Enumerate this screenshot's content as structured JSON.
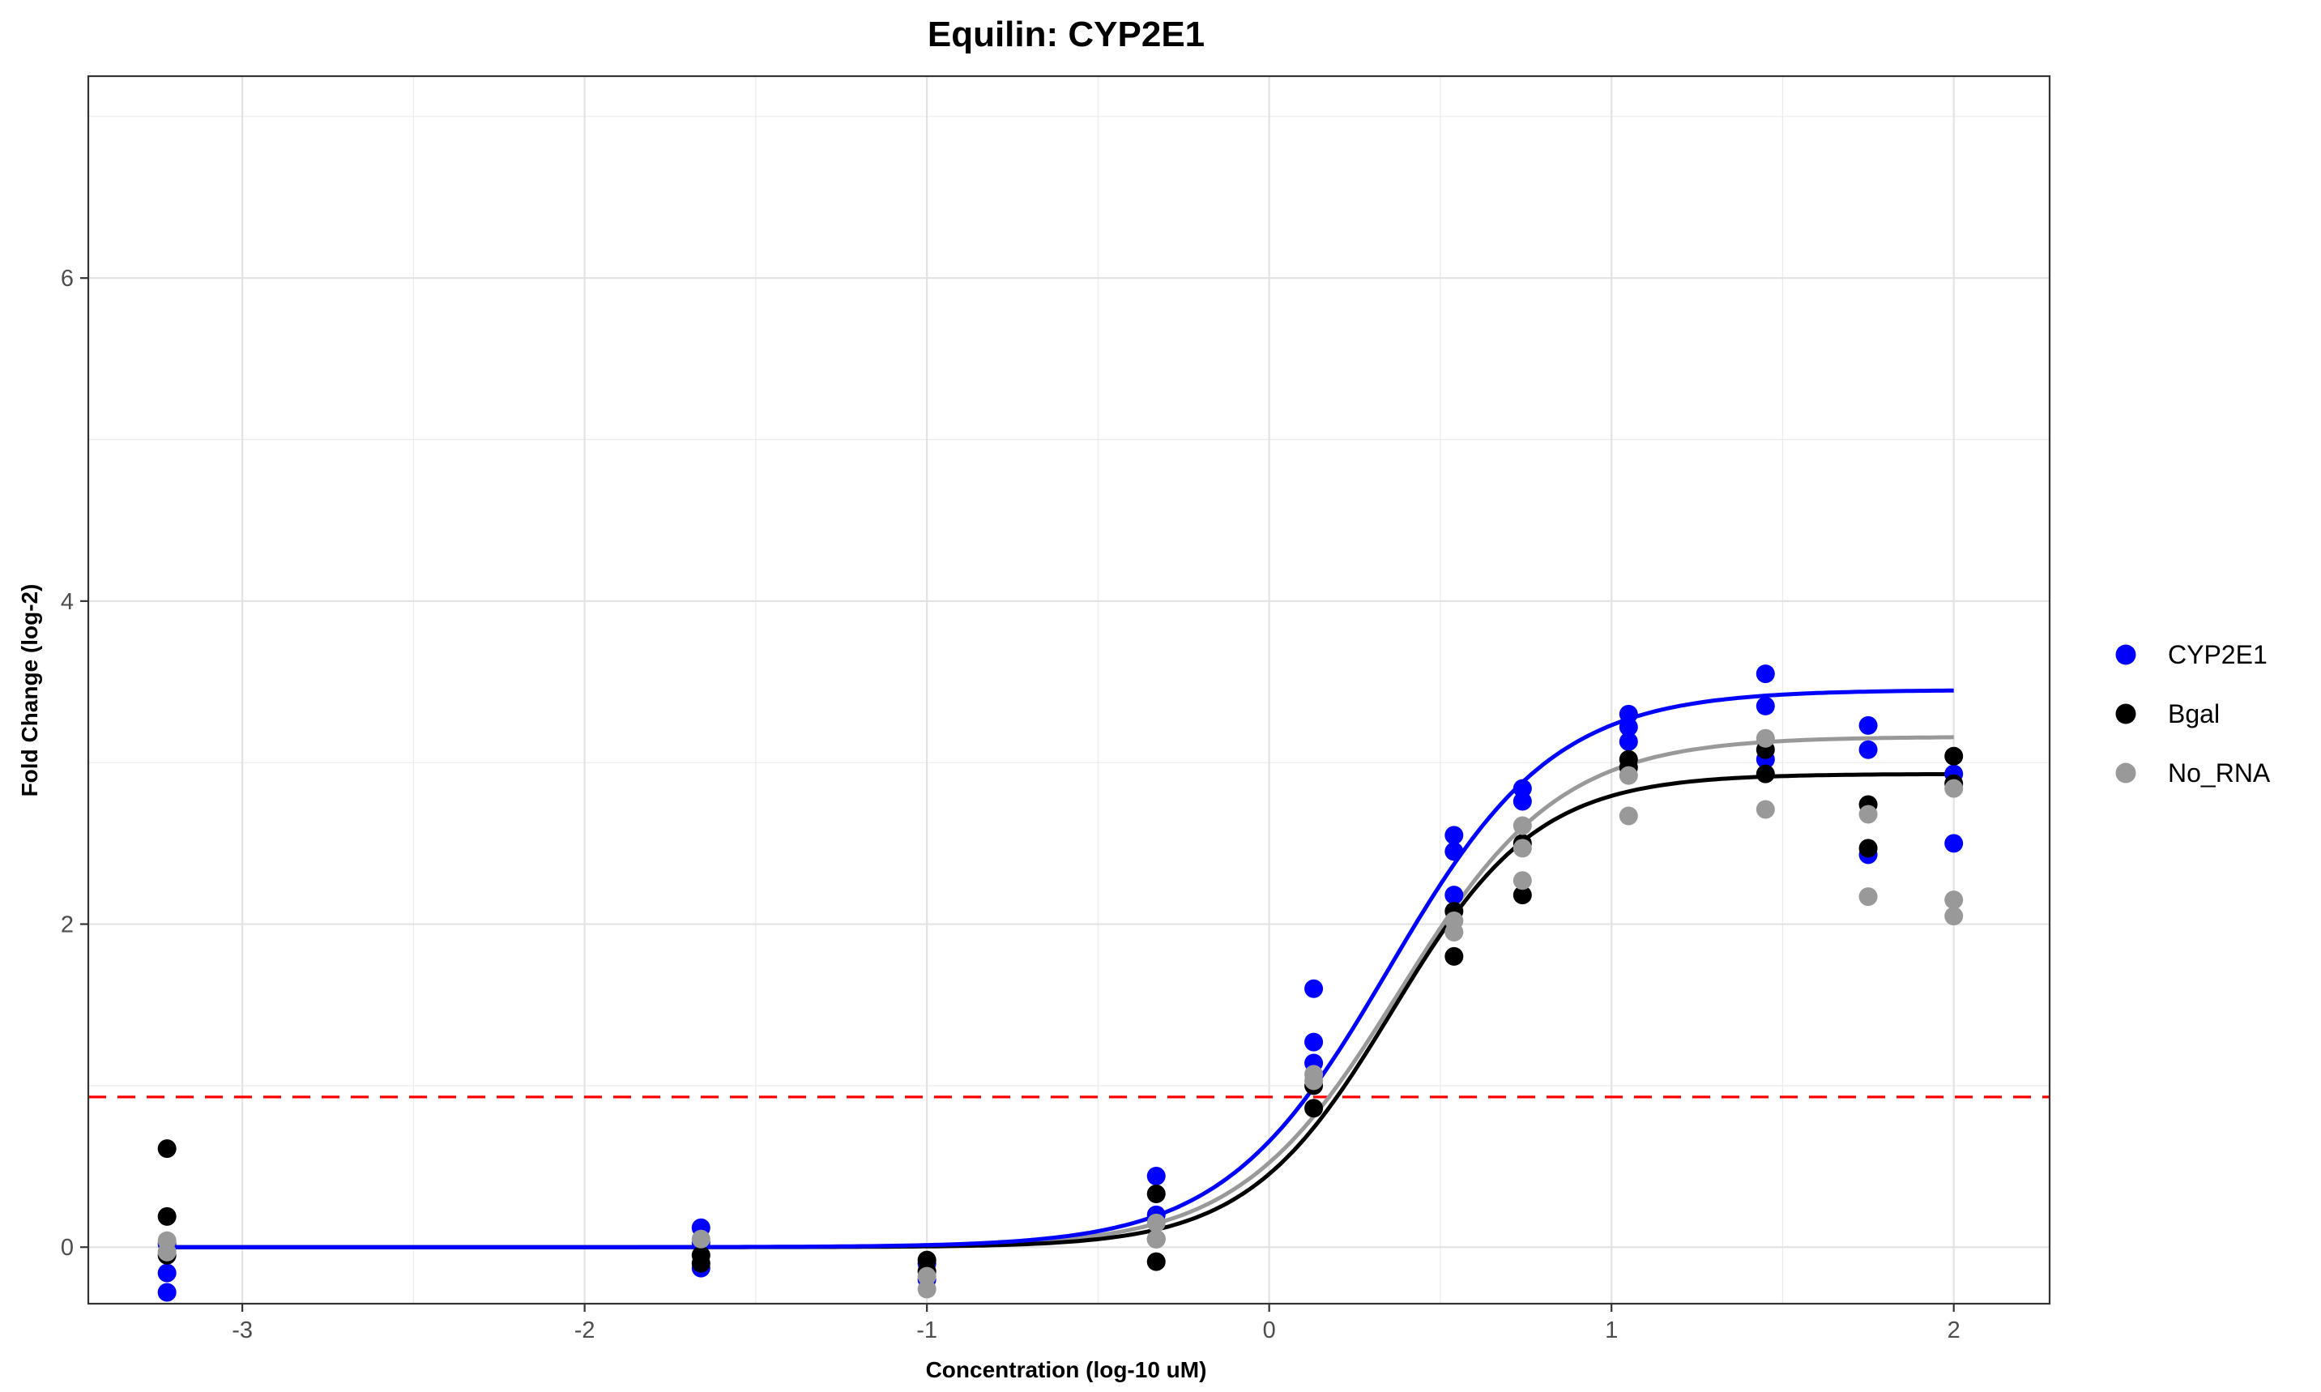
{
  "chart_data": {
    "type": "scatter",
    "title": "Equilin: CYP2E1",
    "xlabel": "Concentration (log-10 uM)",
    "ylabel": "Fold Change (log-2)",
    "xlim": [
      -3.45,
      2.28
    ],
    "ylim": [
      -0.35,
      7.25
    ],
    "x_ticks": [
      -3,
      -2,
      -1,
      0,
      1,
      2
    ],
    "x_tick_labels": [
      "-3",
      "-2",
      "-1",
      "0",
      "1",
      "2"
    ],
    "y_ticks": [
      0,
      2,
      4,
      6
    ],
    "y_tick_labels": [
      "0",
      "2",
      "4",
      "6"
    ],
    "grid": true,
    "legend_position": "right",
    "threshold": {
      "y": 0.93,
      "color": "#ff0000",
      "style": "dashed"
    },
    "series": [
      {
        "name": "CYP2E1",
        "color": "#0000ff",
        "fit": {
          "bottom": 0.0,
          "top": 3.45,
          "ec50_log": 0.35,
          "hill": 1.8
        },
        "points": [
          [
            -3.22,
            -0.28
          ],
          [
            -3.22,
            -0.16
          ],
          [
            -3.22,
            0.02
          ],
          [
            -1.66,
            0.12
          ],
          [
            -1.66,
            -0.13
          ],
          [
            -1.66,
            0.03
          ],
          [
            -1.0,
            -0.2
          ],
          [
            -1.0,
            -0.1
          ],
          [
            -0.33,
            0.44
          ],
          [
            -0.33,
            0.2
          ],
          [
            0.13,
            1.6
          ],
          [
            0.13,
            1.27
          ],
          [
            0.13,
            1.14
          ],
          [
            0.54,
            2.55
          ],
          [
            0.54,
            2.45
          ],
          [
            0.54,
            2.18
          ],
          [
            0.74,
            2.84
          ],
          [
            0.74,
            2.76
          ],
          [
            1.05,
            3.3
          ],
          [
            1.05,
            3.22
          ],
          [
            1.05,
            3.13
          ],
          [
            1.45,
            3.55
          ],
          [
            1.45,
            3.35
          ],
          [
            1.45,
            3.02
          ],
          [
            1.75,
            3.23
          ],
          [
            1.75,
            3.08
          ],
          [
            1.75,
            2.43
          ],
          [
            2.0,
            2.93
          ],
          [
            2.0,
            2.5
          ]
        ]
      },
      {
        "name": "Bgal",
        "color": "#000000",
        "fit": {
          "bottom": 0.0,
          "top": 2.93,
          "ec50_log": 0.36,
          "hill": 2.05
        },
        "points": [
          [
            -3.22,
            0.61
          ],
          [
            -3.22,
            0.19
          ],
          [
            -3.22,
            -0.05
          ],
          [
            -1.66,
            -0.1
          ],
          [
            -1.66,
            -0.05
          ],
          [
            -1.0,
            -0.08
          ],
          [
            -1.0,
            -0.15
          ],
          [
            -0.33,
            0.33
          ],
          [
            -0.33,
            -0.09
          ],
          [
            -0.33,
            0.05
          ],
          [
            0.13,
            0.86
          ],
          [
            0.13,
            1.0
          ],
          [
            0.54,
            1.8
          ],
          [
            0.54,
            2.08
          ],
          [
            0.74,
            2.18
          ],
          [
            0.74,
            2.5
          ],
          [
            1.05,
            3.02
          ],
          [
            1.05,
            2.97
          ],
          [
            1.45,
            3.08
          ],
          [
            1.45,
            2.93
          ],
          [
            1.75,
            2.74
          ],
          [
            1.75,
            2.47
          ],
          [
            2.0,
            3.04
          ],
          [
            2.0,
            2.87
          ]
        ]
      },
      {
        "name": "No_RNA",
        "color": "#999999",
        "fit": {
          "bottom": 0.0,
          "top": 3.16,
          "ec50_log": 0.38,
          "hill": 1.85
        },
        "points": [
          [
            -3.22,
            0.04
          ],
          [
            -3.22,
            -0.03
          ],
          [
            -1.66,
            0.05
          ],
          [
            -1.0,
            -0.26
          ],
          [
            -1.0,
            -0.18
          ],
          [
            -0.33,
            0.15
          ],
          [
            -0.33,
            0.05
          ],
          [
            0.13,
            1.03
          ],
          [
            0.13,
            1.07
          ],
          [
            0.54,
            1.95
          ],
          [
            0.54,
            2.02
          ],
          [
            0.74,
            2.61
          ],
          [
            0.74,
            2.47
          ],
          [
            0.74,
            2.27
          ],
          [
            1.05,
            2.92
          ],
          [
            1.05,
            2.67
          ],
          [
            1.45,
            3.15
          ],
          [
            1.45,
            2.71
          ],
          [
            1.75,
            2.68
          ],
          [
            1.75,
            2.17
          ],
          [
            2.0,
            2.84
          ],
          [
            2.0,
            2.15
          ],
          [
            2.0,
            2.05
          ]
        ]
      }
    ]
  }
}
